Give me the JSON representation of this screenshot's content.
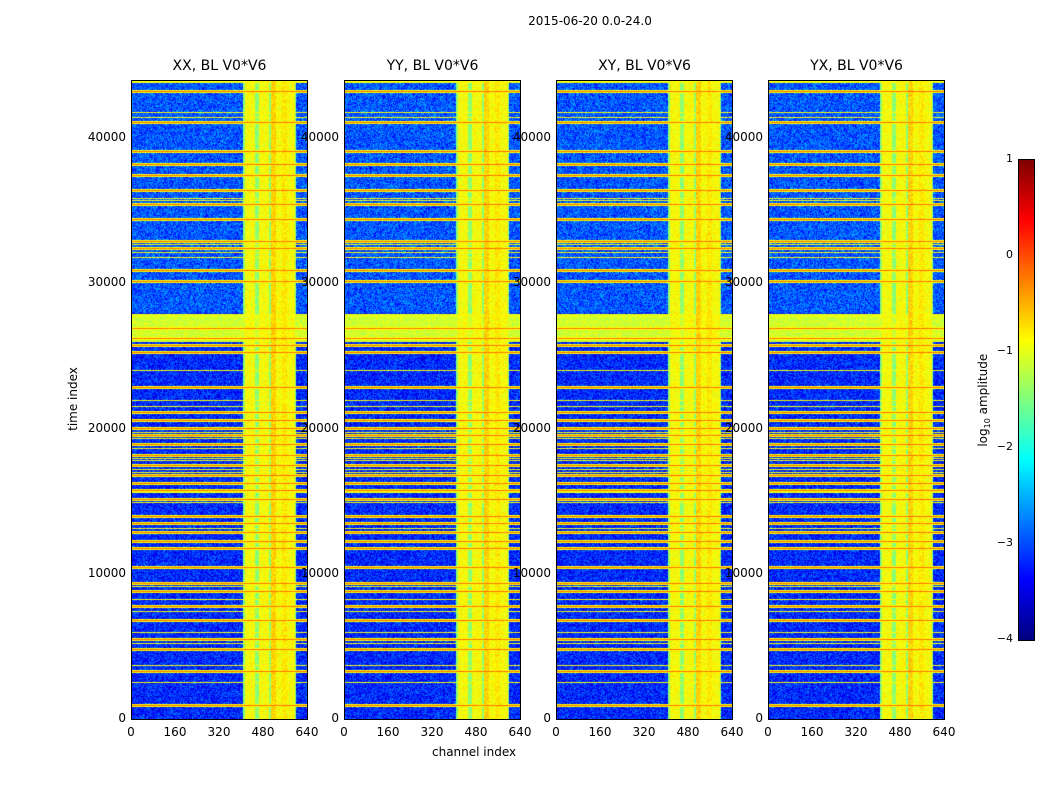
{
  "chart_data": {
    "type": "heatmap",
    "title": "2015-06-20 0.0-24.0",
    "xlabel": "channel index",
    "ylabel": "time index",
    "xlim": [
      0,
      640
    ],
    "ylim": [
      0,
      44000
    ],
    "xticks": [
      "0",
      "160",
      "320",
      "480",
      "640"
    ],
    "yticks": [
      "0",
      "10000",
      "20000",
      "30000",
      "40000"
    ],
    "panels": [
      {
        "title": "XX, BL V0*V6"
      },
      {
        "title": "YY, BL V0*V6"
      },
      {
        "title": "XY, BL V0*V6"
      },
      {
        "title": "YX, BL V0*V6"
      }
    ],
    "colorbar": {
      "label_prefix": "log",
      "label_sub": "10",
      "label_suffix": " amplitude",
      "range": [
        -4,
        1
      ],
      "ticks": [
        "1",
        "0",
        "−1",
        "−2",
        "−3",
        "−4"
      ],
      "colormap": "jet"
    },
    "rfi_channel_band": [
      400,
      590
    ],
    "rfi_time_rows": [
      1000,
      3300,
      4800,
      5500,
      6800,
      7800,
      8800,
      9400,
      10500,
      11800,
      12300,
      12900,
      13500,
      14000,
      15200,
      15800,
      16300,
      16800,
      17500,
      18200,
      19000,
      19600,
      20100,
      20600,
      21200,
      22900,
      25300,
      25800,
      26300,
      27000,
      30200,
      31000,
      32500,
      33000,
      34500,
      35500,
      36500,
      37500,
      38300,
      39200,
      41200,
      43300
    ],
    "background_log_amplitude": -3.2,
    "band_log_amplitude": -0.9,
    "rfi_row_log_amplitude": -0.2
  }
}
